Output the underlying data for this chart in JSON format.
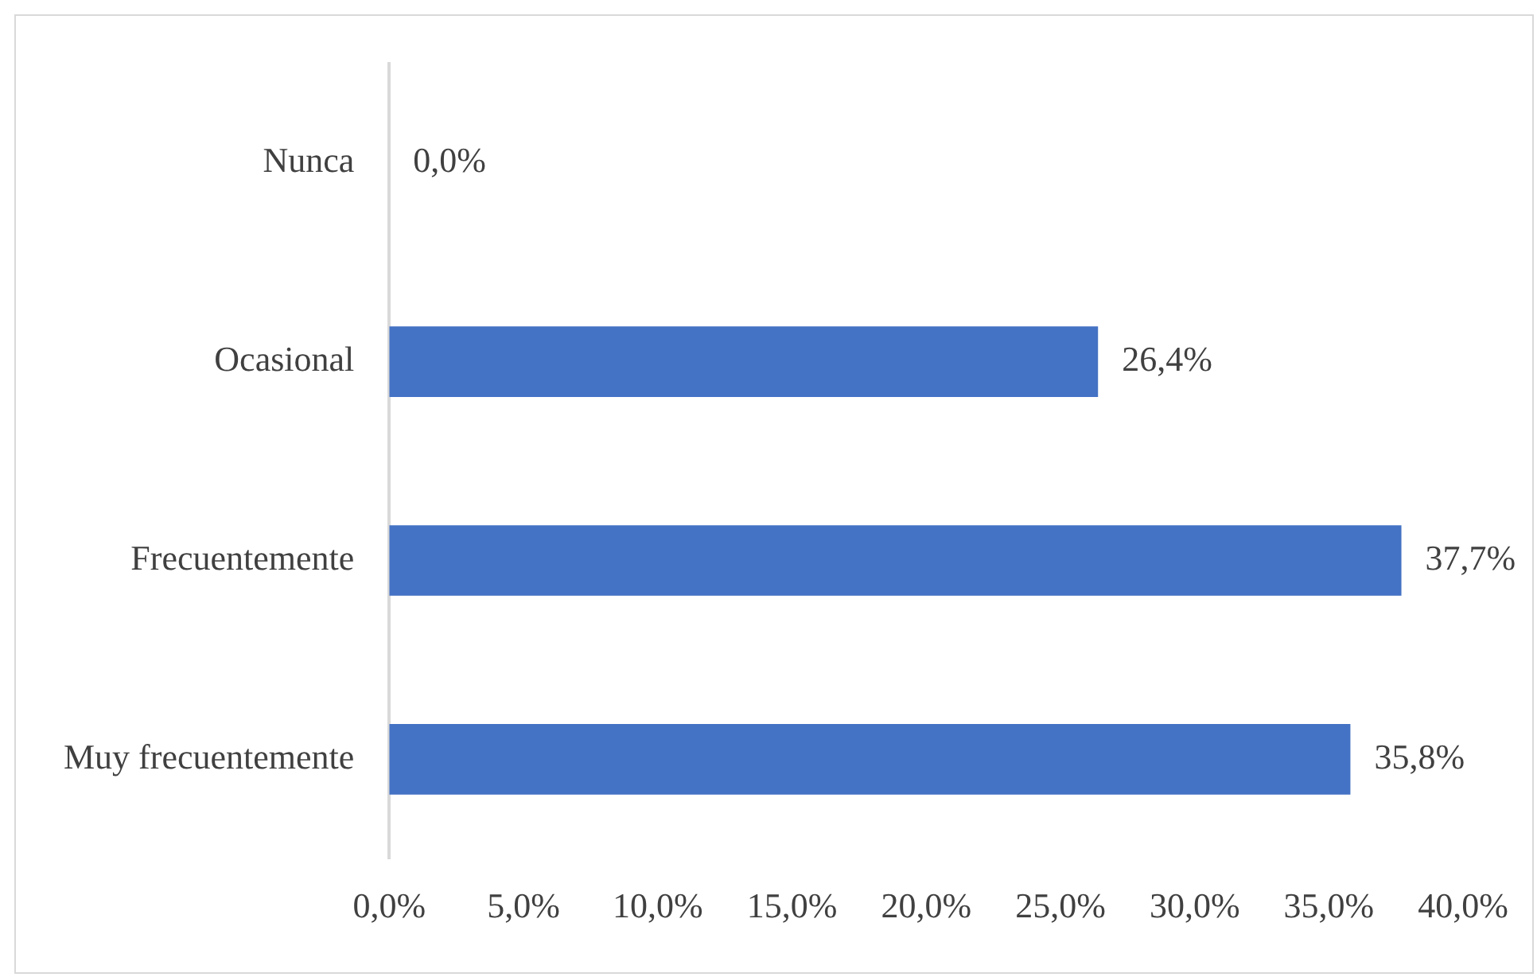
{
  "chart_data": {
    "type": "bar",
    "orientation": "horizontal",
    "categories": [
      "Nunca",
      "Ocasional",
      "Frecuentemente",
      "Muy frecuentemente"
    ],
    "values": [
      0,
      26.4,
      37.7,
      35.8
    ],
    "value_labels": [
      "0,0%",
      "26,4%",
      "37,7%",
      "35,8%"
    ],
    "color": "#4472c4",
    "xlim": [
      0,
      40
    ],
    "xticks": [
      {
        "value": 0,
        "label": "0,0%"
      },
      {
        "value": 5,
        "label": "5,0%"
      },
      {
        "value": 10,
        "label": "10,0%"
      },
      {
        "value": 15,
        "label": "15,0%"
      },
      {
        "value": 20,
        "label": "20,0%"
      },
      {
        "value": 25,
        "label": "25,0%"
      },
      {
        "value": 30,
        "label": "30,0%"
      },
      {
        "value": 35,
        "label": "35,0%"
      },
      {
        "value": 40,
        "label": "40,0%"
      }
    ]
  }
}
